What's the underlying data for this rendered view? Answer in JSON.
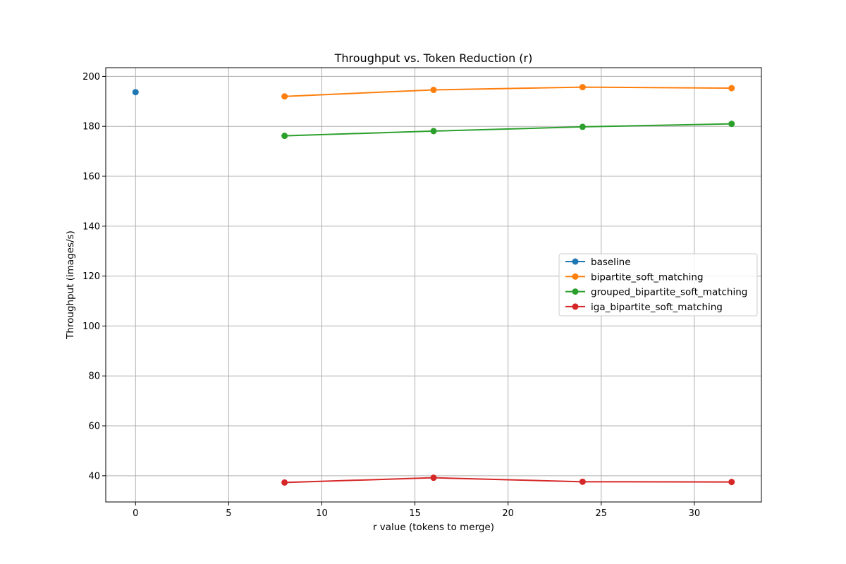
{
  "chart_data": {
    "type": "line",
    "title": "Throughput vs. Token Reduction (r)",
    "xlabel": "r value (tokens to merge)",
    "ylabel": "Throughput (images/s)",
    "xlim": [
      -1.6,
      33.6
    ],
    "ylim": [
      29.5,
      203.5
    ],
    "xticks": [
      0,
      5,
      10,
      15,
      20,
      25,
      30
    ],
    "yticks": [
      40,
      60,
      80,
      100,
      120,
      140,
      160,
      180,
      200
    ],
    "grid": true,
    "legend_position": "center-right",
    "series": [
      {
        "name": "baseline",
        "color": "#1f77b4",
        "x": [
          0
        ],
        "y": [
          193.7
        ]
      },
      {
        "name": "bipartite_soft_matching",
        "color": "#ff7f0e",
        "x": [
          8,
          16,
          24,
          32
        ],
        "y": [
          192.0,
          194.6,
          195.7,
          195.3
        ]
      },
      {
        "name": "grouped_bipartite_soft_matching",
        "color": "#2ca02c",
        "x": [
          8,
          16,
          24,
          32
        ],
        "y": [
          176.2,
          178.1,
          179.8,
          181.0
        ]
      },
      {
        "name": "iga_bipartite_soft_matching",
        "color": "#d62728",
        "x": [
          8,
          16,
          24,
          32
        ],
        "y": [
          37.3,
          39.2,
          37.6,
          37.5
        ]
      }
    ]
  }
}
